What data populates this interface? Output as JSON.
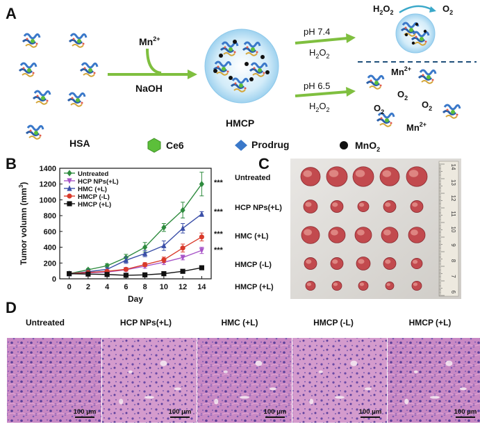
{
  "panel_a": {
    "letter": "A",
    "mn_label": "Mn",
    "mn_sup": "2+",
    "naoh_label": "NaOH",
    "hmcp_label": "HMCP",
    "ph74_label": "pH 7.4",
    "ph65_label": "pH 6.5",
    "h2o2_label_a": "H",
    "h2o2_label_b": "2",
    "h2o2_label_c": "O",
    "h2o2_label_d": "2",
    "o2_label": "O",
    "o2_sub": "2",
    "mn2_label": "Mn",
    "mn2_sup": "2+",
    "legend": {
      "hsa": "HSA",
      "ce6": "Ce6",
      "prodrug": "Prodrug",
      "mno2_a": "MnO",
      "mno2_b": "2"
    },
    "colors": {
      "arrow_green": "#7fbf3f",
      "particle_blue": "#cfe8f7",
      "ce6_green": "#5cbf3a",
      "prodrug_blue": "#3a78c9",
      "mno2_black": "#111111",
      "dashed_line": "#1f4f7a"
    }
  },
  "panel_b": {
    "letter": "B",
    "significance": "***"
  },
  "chart_data": {
    "type": "line",
    "xlabel": "Day",
    "ylabel_main": "Tumor volumn (mm",
    "ylabel_sup": "3",
    "ylabel_close": ")",
    "xlim": [
      -1,
      15
    ],
    "ylim": [
      0,
      1400
    ],
    "x": [
      0,
      2,
      4,
      6,
      8,
      10,
      12,
      14
    ],
    "xticks": [
      "0",
      "2",
      "4",
      "6",
      "8",
      "10",
      "12",
      "14"
    ],
    "yticks": [
      "0",
      "200",
      "400",
      "600",
      "800",
      "1000",
      "1200",
      "1400"
    ],
    "legend_position": "top-left",
    "series": [
      {
        "name": "Untreated",
        "color": "#2e8b3e",
        "marker": "diamond",
        "values": [
          65,
          115,
          165,
          270,
          400,
          650,
          870,
          1200
        ],
        "errors": [
          10,
          15,
          25,
          40,
          60,
          50,
          100,
          150
        ]
      },
      {
        "name": "HCP NPs(+L)",
        "color": "#a855c8",
        "marker": "triangle-down",
        "values": [
          65,
          75,
          85,
          115,
          160,
          210,
          270,
          360
        ],
        "errors": [
          10,
          10,
          15,
          20,
          25,
          30,
          30,
          40
        ]
      },
      {
        "name": "HMC (+L)",
        "color": "#3b4fa8",
        "marker": "triangle-up",
        "values": [
          65,
          90,
          120,
          235,
          320,
          420,
          640,
          820
        ],
        "errors": [
          10,
          15,
          20,
          40,
          40,
          60,
          60,
          30
        ]
      },
      {
        "name": "HMCP (-L)",
        "color": "#d93a2b",
        "marker": "circle",
        "values": [
          65,
          80,
          95,
          120,
          180,
          240,
          390,
          530
        ],
        "errors": [
          10,
          10,
          15,
          20,
          25,
          35,
          50,
          50
        ]
      },
      {
        "name": "HMCP (+L)",
        "color": "#111111",
        "marker": "square",
        "values": [
          65,
          60,
          55,
          45,
          50,
          65,
          95,
          140
        ],
        "errors": [
          5,
          5,
          5,
          5,
          5,
          8,
          10,
          10
        ]
      }
    ]
  },
  "panel_c": {
    "letter": "C",
    "rows": [
      "Untreated",
      "HCP NPs(+L)",
      "HMC (+L)",
      "HMCP (-L)",
      "HMCP (+L)"
    ],
    "ruler_numbers": [
      "14",
      "13",
      "12",
      "11",
      "10",
      "9",
      "8",
      "7",
      "6"
    ]
  },
  "panel_d": {
    "letter": "D",
    "labels": [
      "Untreated",
      "HCP NPs(+L)",
      "HMC (+L)",
      "HMCP (-L)",
      "HMCP (+L)"
    ],
    "scale_bar": "100 μm"
  }
}
